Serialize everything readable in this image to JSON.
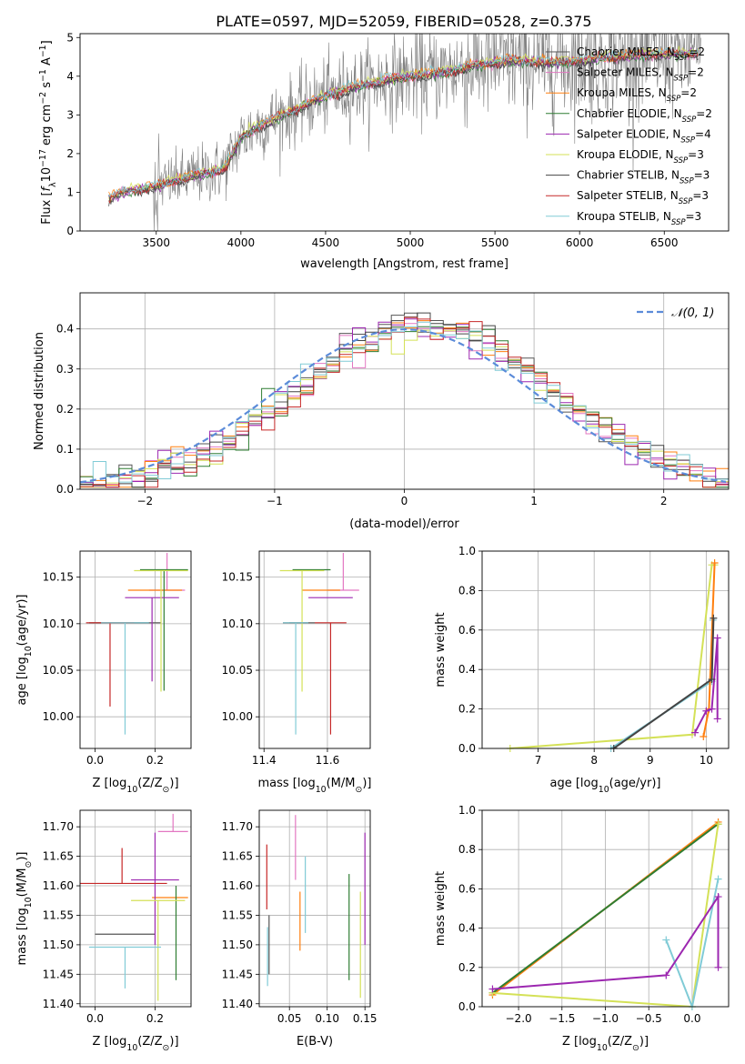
{
  "figure": {
    "title": "PLATE=0597, MJD=52059, FIBERID=0528, z=0.375"
  },
  "models": [
    {
      "name": "Chabrier MILES",
      "nssp": "2",
      "color": "#555555"
    },
    {
      "name": "Salpeter MILES",
      "nssp": "2",
      "color": "#e377c2"
    },
    {
      "name": "Kroupa MILES",
      "nssp": "2",
      "color": "#ff7f0e"
    },
    {
      "name": "Chabrier ELODIE",
      "nssp": "2",
      "color": "#2e7d32"
    },
    {
      "name": "Salpeter ELODIE",
      "nssp": "4",
      "color": "#9c27b0"
    },
    {
      "name": "Kroupa ELODIE",
      "nssp": "3",
      "color": "#d4e157"
    },
    {
      "name": "Chabrier STELIB",
      "nssp": "3",
      "color": "#444444"
    },
    {
      "name": "Salpeter STELIB",
      "nssp": "3",
      "color": "#c62828"
    },
    {
      "name": "Kroupa STELIB",
      "nssp": "3",
      "color": "#80cbd6"
    }
  ],
  "chart_data": [
    {
      "id": "spectrum",
      "type": "line",
      "xlabel": "wavelength [Angstrom, rest frame]",
      "xlim": [
        3050,
        6880
      ],
      "ylim": [
        0,
        5.1
      ],
      "xticks": [
        3500,
        4000,
        4500,
        5000,
        5500,
        6000,
        6500
      ],
      "yticks": [
        0,
        1,
        2,
        3,
        4,
        5
      ],
      "legend_position": "upper-right",
      "data_color": "#808080",
      "continuum": {
        "x": [
          3200,
          3300,
          3500,
          3700,
          3900,
          4000,
          4100,
          4300,
          4500,
          4700,
          4850,
          5000,
          5200,
          5400,
          5600,
          5800,
          6000,
          6200,
          6400,
          6700
        ],
        "y": [
          0.8,
          1.0,
          1.15,
          1.4,
          1.6,
          2.4,
          2.7,
          3.1,
          3.5,
          3.75,
          3.9,
          4.0,
          4.1,
          4.3,
          4.4,
          4.35,
          4.4,
          4.5,
          4.55,
          4.6
        ]
      },
      "data_range": [
        3220,
        6720
      ],
      "model_range": [
        3220,
        6700
      ]
    },
    {
      "id": "residual-histogram",
      "type": "histogram",
      "xlabel": "(data-model)/error",
      "ylabel": "Normed distribution",
      "xlim": [
        -2.5,
        2.5
      ],
      "ylim": [
        0,
        0.49
      ],
      "xticks": [
        -2,
        -1,
        0,
        1,
        2
      ],
      "yticks": [
        0.0,
        0.1,
        0.2,
        0.3,
        0.4
      ],
      "grid": true,
      "reference_curve": {
        "mean": 0,
        "sigma": 1,
        "color": "#5b8bd9",
        "style": "dashed"
      },
      "bin_width": 0.1
    },
    {
      "id": "age-vs-Z",
      "type": "scatter",
      "xlabel": "Z",
      "ylabel": "age",
      "xlim": [
        -0.05,
        0.32
      ],
      "ylim": [
        9.966,
        10.178
      ],
      "xticks": [
        0.0,
        0.2
      ],
      "yticks": [
        10.0,
        10.05,
        10.1,
        10.15
      ],
      "grid": true,
      "points": [
        {
          "model": 0,
          "x": 0.12,
          "y": 10.101,
          "xerr": 0.1,
          "yerr": [
            0.0,
            0.0
          ]
        },
        {
          "model": 1,
          "x": 0.24,
          "y": 10.136,
          "xerr": 0.06,
          "yerr": [
            0.0,
            0.04
          ]
        },
        {
          "model": 2,
          "x": 0.2,
          "y": 10.136,
          "xerr": 0.09,
          "yerr": [
            0.0,
            0.0
          ]
        },
        {
          "model": 3,
          "x": 0.23,
          "y": 10.158,
          "xerr": 0.08,
          "yerr": [
            0.13,
            0.0
          ]
        },
        {
          "model": 4,
          "x": 0.19,
          "y": 10.128,
          "xerr": 0.09,
          "yerr": [
            0.09,
            0.0
          ]
        },
        {
          "model": 5,
          "x": 0.22,
          "y": 10.157,
          "xerr": 0.09,
          "yerr": [
            0.13,
            0.0
          ]
        },
        {
          "model": 6,
          "x": 0.08,
          "y": 10.101,
          "xerr": 0.1,
          "yerr": [
            0.0,
            0.0
          ]
        },
        {
          "model": 7,
          "x": 0.05,
          "y": 10.101,
          "xerr": 0.08,
          "yerr": [
            0.09,
            0.0
          ]
        },
        {
          "model": 8,
          "x": 0.1,
          "y": 10.101,
          "xerr": 0.08,
          "yerr": [
            0.12,
            0.0
          ]
        }
      ]
    },
    {
      "id": "age-vs-mass",
      "type": "scatter",
      "xlabel": "mass",
      "ylabel": "",
      "xlim": [
        11.385,
        11.735
      ],
      "ylim": [
        9.966,
        10.178
      ],
      "xticks": [
        11.4,
        11.6
      ],
      "yticks": [
        10.0,
        10.05,
        10.1,
        10.15
      ],
      "grid": true,
      "points": [
        {
          "model": 0,
          "x": 11.52,
          "y": 10.101,
          "xerr": 0.04,
          "yerr": [
            0.0,
            0.0
          ]
        },
        {
          "model": 1,
          "x": 11.65,
          "y": 10.136,
          "xerr": 0.05,
          "yerr": [
            0.0,
            0.04
          ]
        },
        {
          "model": 2,
          "x": 11.58,
          "y": 10.136,
          "xerr": 0.06,
          "yerr": [
            0.0,
            0.0
          ]
        },
        {
          "model": 3,
          "x": 11.55,
          "y": 10.158,
          "xerr": 0.06,
          "yerr": [
            0.0,
            0.0
          ]
        },
        {
          "model": 4,
          "x": 11.61,
          "y": 10.128,
          "xerr": 0.07,
          "yerr": [
            0.0,
            0.0
          ]
        },
        {
          "model": 5,
          "x": 11.52,
          "y": 10.157,
          "xerr": 0.07,
          "yerr": [
            0.13,
            0.0
          ]
        },
        {
          "model": 6,
          "x": 11.5,
          "y": 10.101,
          "xerr": 0.04,
          "yerr": [
            0.0,
            0.0
          ]
        },
        {
          "model": 7,
          "x": 11.61,
          "y": 10.101,
          "xerr": 0.05,
          "yerr": [
            0.12,
            0.0
          ]
        },
        {
          "model": 8,
          "x": 11.5,
          "y": 10.101,
          "xerr": 0.04,
          "yerr": [
            0.12,
            0.0
          ]
        }
      ]
    },
    {
      "id": "weight-vs-age",
      "type": "line",
      "xlabel": "age",
      "ylabel": "mass weight",
      "xlim": [
        6.0,
        10.4
      ],
      "ylim": [
        0,
        1.0
      ],
      "xticks": [
        7,
        8,
        9,
        10
      ],
      "yticks": [
        0.0,
        0.2,
        0.4,
        0.6,
        0.8,
        1.0
      ],
      "grid": true,
      "lines": [
        {
          "model": 5,
          "x": [
            6.5,
            9.75,
            10.1,
            10.15
          ],
          "y": [
            0.0,
            0.07,
            0.93,
            0.93
          ]
        },
        {
          "model": 8,
          "x": [
            8.3,
            10.1,
            10.12
          ],
          "y": [
            0.0,
            0.34,
            0.65
          ]
        },
        {
          "model": 2,
          "x": [
            9.95,
            10.05,
            10.15
          ],
          "y": [
            0.06,
            0.2,
            0.94
          ]
        },
        {
          "model": 4,
          "x": [
            9.8,
            10.0,
            10.1,
            10.2,
            10.2
          ],
          "y": [
            0.08,
            0.19,
            0.2,
            0.56,
            0.15
          ]
        },
        {
          "model": 6,
          "x": [
            8.35,
            10.1,
            10.13
          ],
          "y": [
            0.0,
            0.35,
            0.66
          ]
        }
      ]
    },
    {
      "id": "mass-vs-Z",
      "type": "scatter",
      "xlabel": "Z",
      "ylabel": "mass",
      "xlim": [
        -0.05,
        0.32
      ],
      "ylim": [
        11.395,
        11.728
      ],
      "xticks": [
        0.0,
        0.2
      ],
      "yticks": [
        11.4,
        11.45,
        11.5,
        11.55,
        11.6,
        11.65,
        11.7
      ],
      "grid": true,
      "points": [
        {
          "model": 0,
          "x": 0.1,
          "y": 11.518,
          "xerr": 0.1,
          "yerr": [
            0.0,
            0.0
          ]
        },
        {
          "model": 1,
          "x": 0.26,
          "y": 11.692,
          "xerr": 0.05,
          "yerr": [
            0.0,
            0.03
          ]
        },
        {
          "model": 2,
          "x": 0.25,
          "y": 11.58,
          "xerr": 0.06,
          "yerr": [
            0.0,
            0.0
          ]
        },
        {
          "model": 3,
          "x": 0.27,
          "y": 11.6,
          "xerr": 0.0,
          "yerr": [
            0.16,
            0.0
          ]
        },
        {
          "model": 4,
          "x": 0.2,
          "y": 11.61,
          "xerr": 0.08,
          "yerr": [
            0.11,
            0.08
          ]
        },
        {
          "model": 5,
          "x": 0.21,
          "y": 11.575,
          "xerr": 0.09,
          "yerr": [
            0.17,
            0.0
          ]
        },
        {
          "model": 6,
          "x": 0.27,
          "y": 11.61,
          "xerr": 0.0,
          "yerr": [
            0.0,
            0.0
          ]
        },
        {
          "model": 7,
          "x": 0.09,
          "y": 11.604,
          "xerr": 0.15,
          "yerr": [
            0.0,
            0.06
          ]
        },
        {
          "model": 8,
          "x": 0.1,
          "y": 11.496,
          "xerr": 0.12,
          "yerr": [
            0.07,
            0.0
          ]
        }
      ]
    },
    {
      "id": "mass-vs-EBV",
      "type": "scatter",
      "xlabel": "E(B-V)",
      "ylabel": "",
      "xlim": [
        0.01,
        0.157
      ],
      "ylim": [
        11.395,
        11.728
      ],
      "xticks": [
        0.05,
        0.1,
        0.15
      ],
      "yticks": [
        11.4,
        11.45,
        11.5,
        11.55,
        11.6,
        11.65,
        11.7
      ],
      "grid": true,
      "segments": [
        {
          "model": 7,
          "x": 0.02,
          "y": [
            11.56,
            11.67
          ]
        },
        {
          "model": 0,
          "x": 0.023,
          "y": [
            11.45,
            11.55
          ]
        },
        {
          "model": 8,
          "x": 0.021,
          "y": [
            11.43,
            11.53
          ]
        },
        {
          "model": 1,
          "x": 0.058,
          "y": [
            11.61,
            11.72
          ]
        },
        {
          "model": 2,
          "x": 0.064,
          "y": [
            11.49,
            11.59
          ]
        },
        {
          "model": 8,
          "x": 0.071,
          "y": [
            11.52,
            11.65
          ]
        },
        {
          "model": 3,
          "x": 0.129,
          "y": [
            11.44,
            11.62
          ]
        },
        {
          "model": 5,
          "x": 0.144,
          "y": [
            11.41,
            11.59
          ]
        },
        {
          "model": 4,
          "x": 0.15,
          "y": [
            11.5,
            11.69
          ]
        }
      ]
    },
    {
      "id": "weight-vs-Z",
      "type": "line",
      "xlabel": "Z",
      "ylabel": "mass weight",
      "xlim": [
        -2.42,
        0.42
      ],
      "ylim": [
        0,
        1.0
      ],
      "xticks": [
        -2.0,
        -1.5,
        -1.0,
        -0.5,
        0.0
      ],
      "yticks": [
        0.0,
        0.2,
        0.4,
        0.6,
        0.8,
        1.0
      ],
      "grid": true,
      "lines": [
        {
          "model": 2,
          "x": [
            -2.3,
            0.3
          ],
          "y": [
            0.06,
            0.94
          ]
        },
        {
          "model": 3,
          "x": [
            -2.3,
            0.3
          ],
          "y": [
            0.07,
            0.93
          ]
        },
        {
          "model": 5,
          "x": [
            -2.3,
            0.0,
            0.3
          ],
          "y": [
            0.07,
            0.0,
            0.93
          ]
        },
        {
          "model": 8,
          "x": [
            -0.3,
            0.0,
            0.3
          ],
          "y": [
            0.34,
            0.0,
            0.65
          ]
        },
        {
          "model": 4,
          "x": [
            -2.3,
            -0.3,
            0.3,
            0.3
          ],
          "y": [
            0.09,
            0.16,
            0.56,
            0.2
          ]
        }
      ]
    }
  ],
  "axis_text": {
    "spec_ylabel_main": "Flux [",
    "spec_ylabel_math": "f",
    "spec_ylabel_sub": "λ",
    "spec_ylabel_rest": "10",
    "spec_ylabel_exp": "−17",
    "spec_ylabel_units": " erg cm",
    "spec_ylabel_exp2": "−2",
    "spec_ylabel_s": " s",
    "spec_ylabel_exp3": "−1",
    "spec_ylabel_a": " A",
    "spec_ylabel_exp4": "−1",
    "spec_ylabel_close": "]",
    "legend_nssp_label": "N",
    "legend_nssp_sub": "SSP",
    "normal_label_n": "𝒩",
    "normal_label_args": "(0, 1)",
    "age_label_a": "age  [log",
    "age_label_sub": "10",
    "age_label_b": "(age/yr)]",
    "z_label_a": "Z [log",
    "z_label_sub": "10",
    "z_label_b": "(Z/Z",
    "z_label_sun": "⊙",
    "z_label_c": ")]",
    "mass_label_a": "mass [log",
    "mass_label_sub": "10",
    "mass_label_b": "(M/M",
    "mass_label_sun": "⊙",
    "mass_label_c": ")]"
  }
}
